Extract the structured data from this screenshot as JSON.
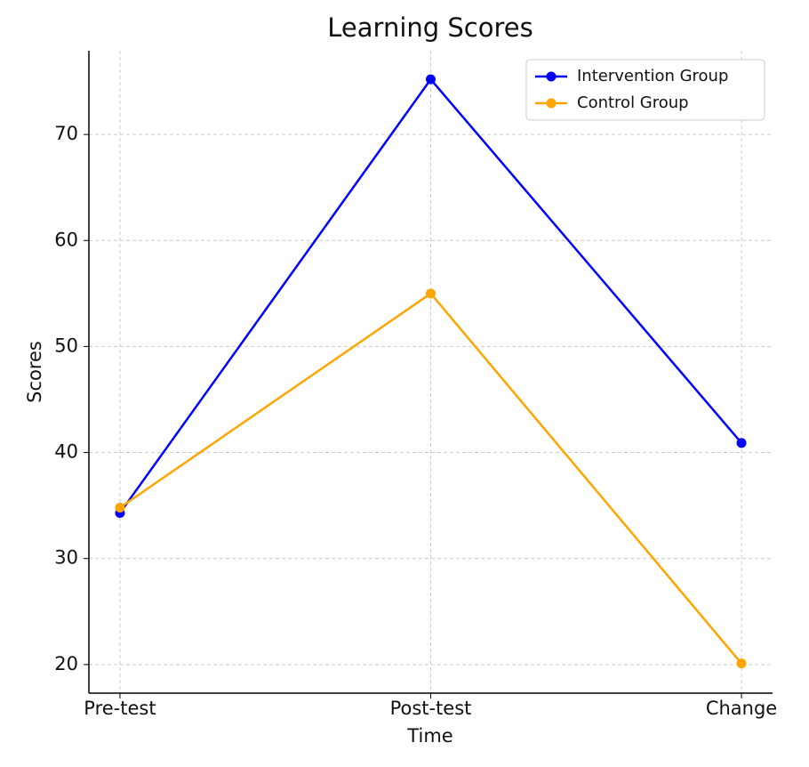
{
  "chart_data": {
    "type": "line",
    "title": "Learning Scores",
    "xlabel": "Time",
    "ylabel": "Scores",
    "categories": [
      "Pre-test",
      "Post-test",
      "Change"
    ],
    "series": [
      {
        "name": "Intervention Group",
        "color": "#0000ff",
        "values": [
          34.3,
          75.2,
          40.9
        ]
      },
      {
        "name": "Control Group",
        "color": "#ffa500",
        "values": [
          34.8,
          55.0,
          20.1
        ]
      }
    ],
    "ylim": [
      17.3,
      77.9
    ],
    "yticks": [
      20,
      30,
      40,
      50,
      60,
      70
    ],
    "grid": true,
    "legend": "upper right"
  }
}
